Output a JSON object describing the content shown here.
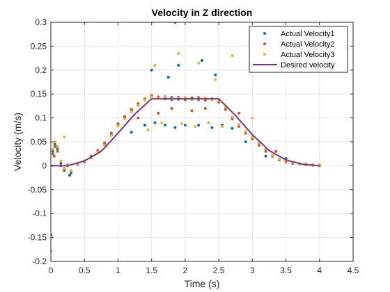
{
  "chart_data": {
    "type": "scatter",
    "title": "Velocity in Z direction",
    "xlabel": "Time (s)",
    "ylabel": "Velocity (m/s)",
    "xlim": [
      0,
      4.5
    ],
    "ylim": [
      -0.2,
      0.3
    ],
    "xticks": [
      0,
      0.5,
      1,
      1.5,
      2,
      2.5,
      3,
      3.5,
      4,
      4.5
    ],
    "xtick_labels": [
      "0",
      "0.5",
      "1",
      "1.5",
      "2",
      "2.5",
      "3",
      "3.5",
      "4",
      "4.5"
    ],
    "yticks": [
      -0.2,
      -0.15,
      -0.1,
      -0.05,
      0,
      0.05,
      0.1,
      0.15,
      0.2,
      0.25,
      0.3
    ],
    "ytick_labels": [
      "-0.2",
      "-0.15",
      "-0.1",
      "-0.05",
      "0",
      "0.05",
      "0.1",
      "0.15",
      "0.2",
      "0.25",
      "0.3"
    ],
    "grid": true,
    "legend_position": "top-right",
    "series": [
      {
        "name": "Actual Velocity1",
        "style": "markers",
        "color": "#0072BD",
        "x": [
          0.0,
          0.03,
          0.06,
          0.1,
          0.15,
          0.2,
          0.25,
          0.3,
          0.4,
          0.5,
          0.6,
          0.7,
          0.8,
          0.9,
          1.0,
          1.1,
          1.2,
          1.3,
          1.4,
          1.5,
          1.6,
          1.7,
          1.8,
          1.9,
          2.0,
          2.1,
          2.2,
          2.3,
          2.4,
          2.5,
          2.6,
          2.7,
          2.8,
          2.9,
          3.0,
          3.1,
          3.2,
          3.3,
          3.4,
          3.5,
          3.6,
          3.7,
          3.8,
          3.9,
          4.0,
          0.0,
          0.28,
          1.2,
          1.4,
          1.55,
          1.7,
          1.85,
          2.0,
          2.2,
          2.4,
          2.55,
          2.7,
          2.9,
          1.5,
          1.75,
          1.9,
          2.25,
          2.45,
          1.85,
          3.2,
          3.5,
          0.08
        ],
        "y": [
          0.0,
          0.03,
          0.045,
          0.035,
          0.005,
          -0.01,
          0.0,
          -0.015,
          0.003,
          0.008,
          0.018,
          0.03,
          0.045,
          0.065,
          0.085,
          0.1,
          0.115,
          0.128,
          0.138,
          0.145,
          0.142,
          0.14,
          0.143,
          0.139,
          0.14,
          0.142,
          0.138,
          0.141,
          0.139,
          0.135,
          0.12,
          0.1,
          0.085,
          0.07,
          0.058,
          0.045,
          0.033,
          0.02,
          0.012,
          0.01,
          0.005,
          0.004,
          0.003,
          0.002,
          0.001,
          -0.145,
          -0.02,
          0.07,
          0.085,
          0.09,
          0.085,
          0.08,
          0.085,
          0.085,
          0.08,
          0.085,
          0.078,
          0.05,
          0.2,
          0.185,
          0.21,
          0.22,
          0.19,
          0.3,
          0.02,
          0.015,
          0.04
        ]
      },
      {
        "name": "Actual Velocity2",
        "style": "markers",
        "color": "#D95319",
        "x": [
          0.0,
          0.03,
          0.06,
          0.1,
          0.15,
          0.2,
          0.25,
          0.3,
          0.4,
          0.5,
          0.6,
          0.7,
          0.8,
          0.9,
          1.0,
          1.1,
          1.2,
          1.3,
          1.4,
          1.5,
          1.6,
          1.7,
          1.8,
          1.9,
          2.0,
          2.1,
          2.2,
          2.3,
          2.4,
          2.5,
          2.6,
          2.7,
          2.8,
          2.9,
          3.0,
          3.1,
          3.2,
          3.3,
          3.4,
          3.5,
          3.6,
          3.7,
          3.8,
          3.9,
          4.0,
          0.0,
          1.6,
          1.8,
          2.1,
          2.3,
          2.6,
          1.3,
          2.8,
          3.35,
          0.05
        ],
        "y": [
          0.0,
          0.025,
          0.04,
          0.03,
          0.0,
          -0.008,
          0.002,
          -0.012,
          0.004,
          0.01,
          0.02,
          0.032,
          0.048,
          0.068,
          0.088,
          0.103,
          0.118,
          0.13,
          0.14,
          0.147,
          0.144,
          0.142,
          0.138,
          0.143,
          0.138,
          0.139,
          0.143,
          0.137,
          0.14,
          0.133,
          0.118,
          0.098,
          0.082,
          0.068,
          0.056,
          0.043,
          0.03,
          0.02,
          0.013,
          0.008,
          0.006,
          0.004,
          0.002,
          0.001,
          0.0,
          -0.178,
          0.11,
          0.12,
          0.115,
          0.12,
          0.12,
          0.1,
          0.11,
          0.03,
          0.02
        ]
      },
      {
        "name": "Actual Velocity3",
        "style": "markers",
        "color": "#EDB120",
        "x": [
          0.0,
          0.03,
          0.06,
          0.1,
          0.15,
          0.2,
          0.25,
          0.3,
          0.4,
          0.5,
          0.6,
          0.7,
          0.8,
          0.9,
          1.0,
          1.1,
          1.2,
          1.3,
          1.4,
          1.5,
          1.6,
          1.7,
          1.8,
          1.9,
          2.0,
          2.1,
          2.2,
          2.3,
          2.4,
          2.5,
          2.6,
          2.7,
          2.8,
          2.9,
          3.0,
          3.1,
          3.2,
          3.3,
          3.4,
          3.5,
          3.6,
          3.7,
          3.8,
          3.9,
          4.0,
          1.45,
          1.65,
          1.95,
          2.15,
          2.35,
          2.55,
          1.55,
          1.9,
          2.2,
          2.7,
          2.45,
          3.0,
          0.2
        ],
        "y": [
          0.0,
          0.035,
          0.05,
          0.04,
          0.01,
          -0.005,
          0.001,
          -0.01,
          0.005,
          0.01,
          0.016,
          0.028,
          0.043,
          0.063,
          0.083,
          0.098,
          0.113,
          0.126,
          0.137,
          0.144,
          0.141,
          0.145,
          0.14,
          0.141,
          0.143,
          0.138,
          0.14,
          0.142,
          0.138,
          0.136,
          0.122,
          0.102,
          0.086,
          0.072,
          0.06,
          0.047,
          0.035,
          0.022,
          0.014,
          0.011,
          0.007,
          0.005,
          0.004,
          0.003,
          0.002,
          0.075,
          0.09,
          0.088,
          0.082,
          0.09,
          0.082,
          0.21,
          0.235,
          0.215,
          0.23,
          0.18,
          0.1,
          0.06
        ]
      },
      {
        "name": "Desired velocity",
        "style": "line",
        "color": "#7E2F8E",
        "x": [
          0.0,
          0.25,
          0.5,
          0.75,
          1.0,
          1.25,
          1.5,
          1.75,
          2.0,
          2.25,
          2.5,
          2.75,
          3.0,
          3.25,
          3.5,
          3.75,
          4.0
        ],
        "y": [
          0.0,
          0.0,
          0.01,
          0.03,
          0.068,
          0.108,
          0.14,
          0.14,
          0.14,
          0.14,
          0.14,
          0.105,
          0.065,
          0.032,
          0.012,
          0.003,
          0.0
        ]
      }
    ]
  }
}
